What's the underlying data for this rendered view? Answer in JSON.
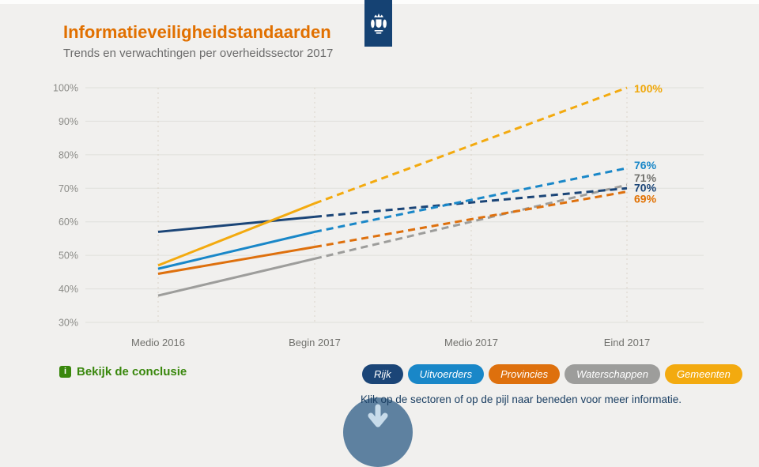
{
  "header": {
    "title": "Informatieveiligheidstandaarden",
    "subtitle": "Trends en verwachtingen per overheidssector 2017"
  },
  "logo": {
    "name": "rijksoverheid-crest"
  },
  "colors": {
    "background": "#F1F0EE",
    "title": "#E17000",
    "logo_blue": "#154273",
    "conclusion_green": "#39870C",
    "instruction_text": "#1B3F63",
    "arrow_circle": "#5E81A0",
    "arrow_glyph": "#C7DBEA",
    "grid": "#E0DFDB",
    "grid_dash": "#DCD4C9",
    "axis_label": "#8C8C88",
    "x_label": "#71716D"
  },
  "chart_data": {
    "type": "line",
    "title": "Informatieveiligheidstandaarden",
    "subtitle": "Trends en verwachtingen per overheidssector 2017",
    "x_labels": [
      "Medio 2016",
      "Begin 2017",
      "Medio 2017",
      "Eind 2017"
    ],
    "y_ticks": [
      "100%",
      "90%",
      "80%",
      "70%",
      "60%",
      "50%",
      "40%",
      "30%"
    ],
    "ylim": [
      30,
      100
    ],
    "projection_note": "solid tot Begin 2017, gestippeld (verwachting) tot Eind 2017",
    "series": [
      {
        "name": "Rijk",
        "color": "#1B4577",
        "observed": [
          57,
          61.5
        ],
        "projected_eind_2017": 70,
        "end_label": "70%",
        "label_color": "#1B4577"
      },
      {
        "name": "Uitvoerders",
        "color": "#1987C8",
        "observed": [
          46,
          57
        ],
        "projected_eind_2017": 76,
        "end_label": "76%",
        "label_color": "#1987C8"
      },
      {
        "name": "Provincies",
        "color": "#DE700D",
        "observed": [
          44.5,
          52.5
        ],
        "projected_eind_2017": 69,
        "end_label": "69%",
        "label_color": "#E17000"
      },
      {
        "name": "Waterschappen",
        "color": "#9D9D9B",
        "observed": [
          38,
          49
        ],
        "projected_eind_2017": 71,
        "end_label": "71%",
        "label_color": "#73736F"
      },
      {
        "name": "Gemeenten",
        "color": "#F3AA0F",
        "observed": [
          47,
          65.5
        ],
        "projected_eind_2017": 100,
        "end_label": "100%",
        "label_color": "#F0A80A"
      }
    ]
  },
  "footer": {
    "conclusion_label": "Bekijk de conclusie",
    "info_icon_glyph": "i",
    "instruction": "Klik op de sectoren of op de pijl naar beneden voor meer informatie."
  }
}
